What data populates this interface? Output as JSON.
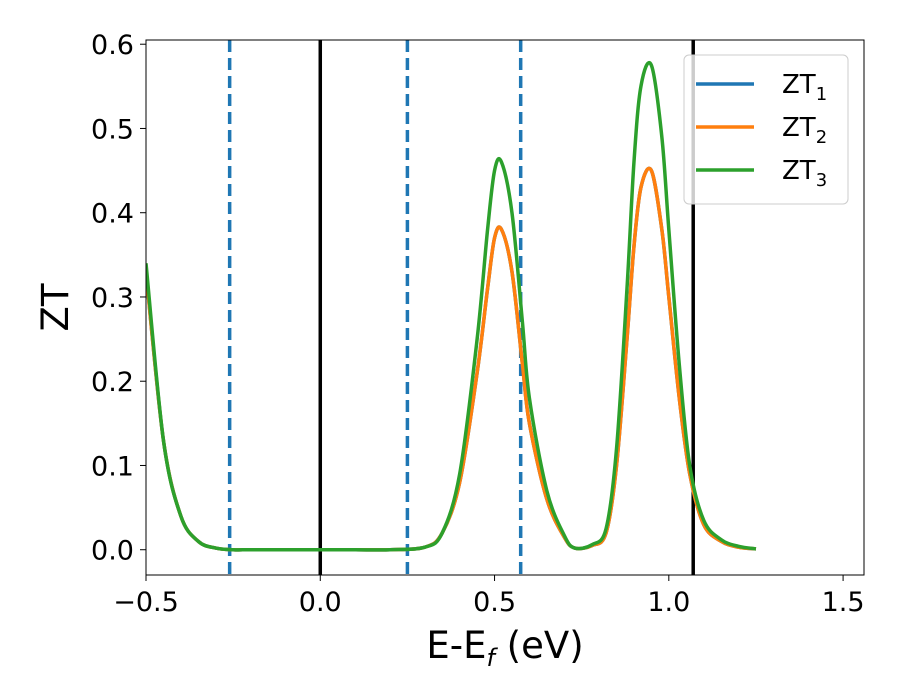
{
  "chart_data": {
    "type": "line",
    "xlabel": "E-E",
    "xlabel_sub": "f",
    "xlabel_unit": " (eV)",
    "ylabel": "ZT",
    "xlim": [
      -0.5,
      1.56
    ],
    "ylim": [
      -0.03,
      0.605
    ],
    "xticks": [
      -0.5,
      0.0,
      0.5,
      1.0,
      1.5
    ],
    "xtick_labels": [
      "−0.5",
      "0.0",
      "0.5",
      "1.0",
      "1.5"
    ],
    "yticks": [
      0.0,
      0.1,
      0.2,
      0.3,
      0.4,
      0.5,
      0.6
    ],
    "ytick_labels": [
      "0.0",
      "0.1",
      "0.2",
      "0.3",
      "0.4",
      "0.5",
      "0.6"
    ],
    "grid": false,
    "legend_position": "top-right",
    "series": [
      {
        "name": "ZT",
        "sub": "1",
        "color": "#1f77b4",
        "x": [
          -0.5,
          -0.45,
          -0.4,
          -0.35,
          -0.3,
          -0.25,
          -0.2,
          -0.1,
          0.0,
          0.1,
          0.2,
          0.3,
          0.35,
          0.4,
          0.45,
          0.48,
          0.5,
          0.52,
          0.55,
          0.58,
          0.6,
          0.65,
          0.7,
          0.73,
          0.78,
          0.82,
          0.85,
          0.88,
          0.9,
          0.92,
          0.95,
          0.98,
          1.0,
          1.03,
          1.06,
          1.1,
          1.15,
          1.2,
          1.25
        ],
        "y": [
          0.33,
          0.13,
          0.04,
          0.01,
          0.002,
          0.0,
          0.0,
          0.0,
          0.0,
          0.0,
          0.0,
          0.003,
          0.02,
          0.08,
          0.21,
          0.31,
          0.37,
          0.38,
          0.33,
          0.22,
          0.15,
          0.06,
          0.015,
          0.002,
          0.005,
          0.02,
          0.1,
          0.25,
          0.36,
          0.43,
          0.45,
          0.38,
          0.3,
          0.18,
          0.09,
          0.03,
          0.01,
          0.003,
          0.001
        ]
      },
      {
        "name": "ZT",
        "sub": "2",
        "color": "#ff7f0e",
        "x": [
          -0.5,
          -0.45,
          -0.4,
          -0.35,
          -0.3,
          -0.25,
          -0.2,
          -0.1,
          0.0,
          0.1,
          0.2,
          0.3,
          0.35,
          0.4,
          0.45,
          0.48,
          0.5,
          0.52,
          0.55,
          0.58,
          0.6,
          0.65,
          0.7,
          0.73,
          0.78,
          0.82,
          0.85,
          0.88,
          0.9,
          0.92,
          0.95,
          0.98,
          1.0,
          1.03,
          1.06,
          1.1,
          1.15,
          1.2,
          1.25
        ],
        "y": [
          0.33,
          0.13,
          0.04,
          0.01,
          0.002,
          0.0,
          0.0,
          0.0,
          0.0,
          0.0,
          0.0,
          0.003,
          0.02,
          0.08,
          0.21,
          0.31,
          0.37,
          0.38,
          0.33,
          0.22,
          0.15,
          0.06,
          0.015,
          0.002,
          0.005,
          0.02,
          0.1,
          0.25,
          0.36,
          0.43,
          0.45,
          0.38,
          0.3,
          0.18,
          0.09,
          0.03,
          0.01,
          0.003,
          0.001
        ]
      },
      {
        "name": "ZT",
        "sub": "3",
        "color": "#2ca02c",
        "x": [
          -0.5,
          -0.45,
          -0.4,
          -0.35,
          -0.3,
          -0.25,
          -0.2,
          -0.1,
          0.0,
          0.1,
          0.2,
          0.3,
          0.35,
          0.4,
          0.45,
          0.48,
          0.5,
          0.52,
          0.55,
          0.58,
          0.6,
          0.65,
          0.7,
          0.73,
          0.78,
          0.82,
          0.85,
          0.88,
          0.9,
          0.92,
          0.95,
          0.98,
          1.0,
          1.03,
          1.06,
          1.1,
          1.15,
          1.2,
          1.25
        ],
        "y": [
          0.34,
          0.13,
          0.04,
          0.01,
          0.002,
          0.0,
          0.0,
          0.0,
          0.0,
          0.0,
          0.0,
          0.003,
          0.02,
          0.09,
          0.25,
          0.38,
          0.45,
          0.46,
          0.4,
          0.27,
          0.18,
          0.07,
          0.017,
          0.002,
          0.006,
          0.025,
          0.12,
          0.31,
          0.46,
          0.55,
          0.575,
          0.49,
          0.38,
          0.22,
          0.1,
          0.035,
          0.012,
          0.004,
          0.001
        ]
      }
    ],
    "vlines": [
      {
        "x": 0.0,
        "style": "solid",
        "color": "#000000"
      },
      {
        "x": 1.07,
        "style": "solid",
        "color": "#000000"
      },
      {
        "x": -0.26,
        "style": "dashed",
        "color": "#1f77b4"
      },
      {
        "x": 0.25,
        "style": "dashed",
        "color": "#1f77b4"
      },
      {
        "x": 0.575,
        "style": "dashed",
        "color": "#1f77b4"
      }
    ]
  }
}
